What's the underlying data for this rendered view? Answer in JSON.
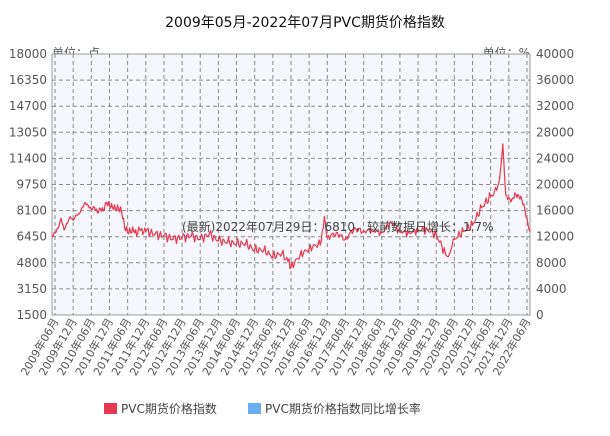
{
  "chart_data": {
    "type": "line",
    "title": "2009年05月-2022年07月PVC期货价格指数",
    "left_unit": "单位：点",
    "right_unit": "单位：%",
    "left_axis": {
      "ticks": [
        1500,
        3150,
        4800,
        6450,
        8100,
        9750,
        11400,
        13050,
        14700,
        16350,
        18000
      ],
      "ylim": [
        1500,
        18000
      ]
    },
    "right_axis": {
      "ticks": [
        0,
        4000,
        8000,
        12000,
        16000,
        20000,
        24000,
        28000,
        32000,
        36000,
        40000
      ],
      "ylim": [
        0,
        40000
      ]
    },
    "x_categories": [
      "2009年06月",
      "2009年12月",
      "2010年06月",
      "2010年12月",
      "2011年06月",
      "2011年12月",
      "2012年06月",
      "2012年12月",
      "2013年06月",
      "2013年12月",
      "2014年06月",
      "2014年12月",
      "2015年06月",
      "2015年12月",
      "2016年06月",
      "2016年12月",
      "2017年06月",
      "2017年12月",
      "2018年06月",
      "2018年12月",
      "2019年06月",
      "2019年12月",
      "2020年06月",
      "2020年12月",
      "2021年06月",
      "2021年12月",
      "2022年06月"
    ],
    "annotation": "(最新)2022年07月29日：6810，较前数据日增长：1.7%",
    "grid": true,
    "legend_position": "bottom",
    "series": [
      {
        "name": "PVC期货价格指数",
        "color": "#e8384f",
        "axis": "left",
        "x": [
          "2009-05",
          "2009-06",
          "2009-07",
          "2009-08",
          "2009-09",
          "2009-10",
          "2009-11",
          "2009-12",
          "2010-01",
          "2010-02",
          "2010-03",
          "2010-04",
          "2010-05",
          "2010-06",
          "2010-07",
          "2010-08",
          "2010-09",
          "2010-10",
          "2010-11",
          "2010-12",
          "2011-01",
          "2011-02",
          "2011-03",
          "2011-04",
          "2011-05",
          "2011-06",
          "2011-07",
          "2011-08",
          "2011-09",
          "2011-10",
          "2011-11",
          "2011-12",
          "2012-03",
          "2012-06",
          "2012-09",
          "2012-12",
          "2013-03",
          "2013-06",
          "2013-09",
          "2013-12",
          "2014-03",
          "2014-06",
          "2014-09",
          "2014-12",
          "2015-03",
          "2015-06",
          "2015-09",
          "2015-11",
          "2015-12",
          "2016-03",
          "2016-06",
          "2016-09",
          "2016-10",
          "2016-11",
          "2016-12",
          "2017-03",
          "2017-06",
          "2017-09",
          "2017-12",
          "2018-03",
          "2018-06",
          "2018-09",
          "2018-12",
          "2019-03",
          "2019-06",
          "2019-09",
          "2019-12",
          "2020-03",
          "2020-04",
          "2020-06",
          "2020-09",
          "2020-12",
          "2021-03",
          "2021-06",
          "2021-08",
          "2021-09",
          "2021-10",
          "2021-11",
          "2021-12",
          "2022-01",
          "2022-02",
          "2022-03",
          "2022-04",
          "2022-05",
          "2022-06",
          "2022-07"
        ],
        "values": [
          6500,
          6700,
          7000,
          7600,
          6900,
          7300,
          7700,
          7500,
          7800,
          7900,
          8300,
          8600,
          8400,
          8200,
          8300,
          8000,
          8200,
          8100,
          8600,
          8400,
          8300,
          8200,
          8200,
          8000,
          7000,
          6700,
          6700,
          6800,
          6500,
          6900,
          6600,
          6800,
          6600,
          6500,
          6300,
          6400,
          6500,
          6300,
          6600,
          6200,
          6100,
          6000,
          6000,
          5600,
          5600,
          5200,
          5400,
          4900,
          4500,
          5300,
          5700,
          6000,
          6200,
          7700,
          6400,
          6700,
          6300,
          7000,
          6800,
          6900,
          6700,
          7400,
          6800,
          6700,
          6900,
          6900,
          6600,
          5400,
          5200,
          6300,
          6800,
          7200,
          8300,
          9000,
          9400,
          10200,
          12300,
          9100,
          8900,
          8800,
          9200,
          9100,
          9000,
          8500,
          7600,
          6810
        ]
      },
      {
        "name": "PVC期货价格指数同比增长率",
        "color": "#6aaef0",
        "axis": "right",
        "values": []
      }
    ]
  }
}
